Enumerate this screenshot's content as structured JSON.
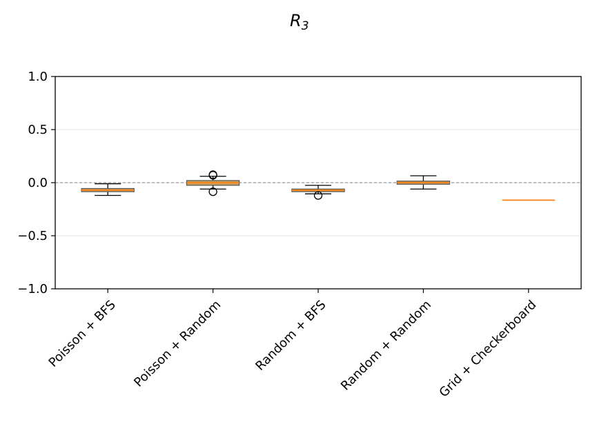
{
  "chart_data": {
    "type": "box",
    "title": "R",
    "title_subscript": "3",
    "xlabel": "",
    "ylabel": "",
    "ylim": [
      -1.0,
      1.0
    ],
    "yticks": [
      -1.0,
      -0.5,
      0.0,
      0.5,
      1.0
    ],
    "ytick_labels": [
      "−1.0",
      "−0.5",
      "0.0",
      "0.5",
      "1.0"
    ],
    "grid": true,
    "reference_line": 0.0,
    "colors": {
      "box_fill": "#c8a060",
      "box_edge": "#555555",
      "median": "#ff7f0e",
      "whisker": "#000000",
      "reference": "#999999",
      "grid": "#e6e6e6"
    },
    "categories": [
      "Poisson + BFS",
      "Poisson + Random",
      "Random + BFS",
      "Random + Random",
      "Grid + Checkerboard"
    ],
    "boxes": [
      {
        "label": "Poisson + BFS",
        "whislo": -0.12,
        "q1": -0.085,
        "med": -0.07,
        "q3": -0.055,
        "whishi": -0.01,
        "fliers": []
      },
      {
        "label": "Poisson + Random",
        "whislo": -0.06,
        "q1": -0.025,
        "med": 0.0,
        "q3": 0.02,
        "whishi": 0.06,
        "fliers": [
          0.07,
          0.075,
          -0.085
        ]
      },
      {
        "label": "Random + BFS",
        "whislo": -0.105,
        "q1": -0.085,
        "med": -0.07,
        "q3": -0.06,
        "whishi": -0.025,
        "fliers": [
          -0.12
        ]
      },
      {
        "label": "Random + Random",
        "whislo": -0.06,
        "q1": -0.015,
        "med": 0.0,
        "q3": 0.015,
        "whishi": 0.065,
        "fliers": []
      },
      {
        "label": "Grid + Checkerboard",
        "whislo": -0.165,
        "q1": -0.165,
        "med": -0.165,
        "q3": -0.165,
        "whishi": -0.165,
        "fliers": []
      }
    ]
  }
}
